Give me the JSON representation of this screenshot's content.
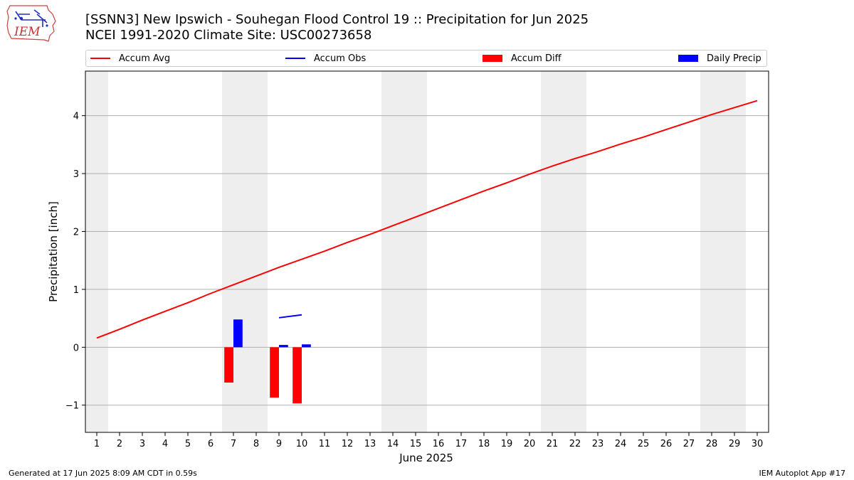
{
  "logo": {
    "text": "IEM"
  },
  "title_line1": "[SSNN3] New Ipswich - Souhegan Flood Control 19 :: Precipitation for Jun 2025",
  "title_line2": "NCEI 1991-2020 Climate Site: USC00273658",
  "legend": [
    {
      "label": "Accum Avg",
      "color": "#ff0000",
      "kind": "line"
    },
    {
      "label": "Accum Obs",
      "color": "#0000ff",
      "kind": "line"
    },
    {
      "label": "Accum Diff",
      "color": "#ff0000",
      "kind": "box"
    },
    {
      "label": "Daily Precip",
      "color": "#0000ff",
      "kind": "box"
    }
  ],
  "footer_left": "Generated at 17 Jun 2025 8:09 AM CDT in 0.59s",
  "footer_right": "IEM Autoplot App #17",
  "chart_data": {
    "type": "line",
    "xlabel": "June 2025",
    "ylabel": "Precipitation [inch]",
    "xlim": [
      0.5,
      30.5
    ],
    "ylim": [
      -1.47,
      4.77
    ],
    "x_ticks": [
      1,
      2,
      3,
      4,
      5,
      6,
      7,
      8,
      9,
      10,
      11,
      12,
      13,
      14,
      15,
      16,
      17,
      18,
      19,
      20,
      21,
      22,
      23,
      24,
      25,
      26,
      27,
      28,
      29,
      30
    ],
    "y_ticks": [
      -1,
      0,
      1,
      2,
      3,
      4
    ],
    "y_tick_labels": [
      "−1",
      "0",
      "1",
      "2",
      "3",
      "4"
    ],
    "grid": "y",
    "weekend_shading": [
      [
        0.5,
        1.5
      ],
      [
        6.5,
        8.5
      ],
      [
        13.5,
        15.5
      ],
      [
        20.5,
        22.5
      ],
      [
        27.5,
        29.5
      ]
    ],
    "shade_color": "#eeeeee",
    "series": [
      {
        "name": "Accum Avg",
        "kind": "line",
        "color": "#ff0000",
        "x": [
          1,
          2,
          3,
          4,
          5,
          6,
          7,
          8,
          9,
          10,
          11,
          12,
          13,
          14,
          15,
          16,
          17,
          18,
          19,
          20,
          21,
          22,
          23,
          24,
          25,
          26,
          27,
          28,
          29,
          30
        ],
        "values": [
          0.16,
          0.31,
          0.47,
          0.62,
          0.77,
          0.93,
          1.08,
          1.23,
          1.38,
          1.52,
          1.66,
          1.81,
          1.95,
          2.1,
          2.25,
          2.4,
          2.55,
          2.7,
          2.84,
          2.99,
          3.13,
          3.26,
          3.38,
          3.51,
          3.63,
          3.76,
          3.89,
          4.02,
          4.14,
          4.26
        ]
      },
      {
        "name": "Accum Obs",
        "kind": "line",
        "color": "#0000ff",
        "x": [
          9,
          10
        ],
        "values": [
          0.51,
          0.56
        ]
      },
      {
        "name": "Accum Diff",
        "kind": "bar",
        "color": "#ff0000",
        "offset": -0.2,
        "x": [
          7,
          9,
          10
        ],
        "values": [
          -0.61,
          -0.87,
          -0.97
        ]
      },
      {
        "name": "Daily Precip",
        "kind": "bar",
        "color": "#0000ff",
        "offset": 0.2,
        "x": [
          7,
          9,
          10
        ],
        "values": [
          0.48,
          0.04,
          0.05
        ]
      }
    ]
  }
}
